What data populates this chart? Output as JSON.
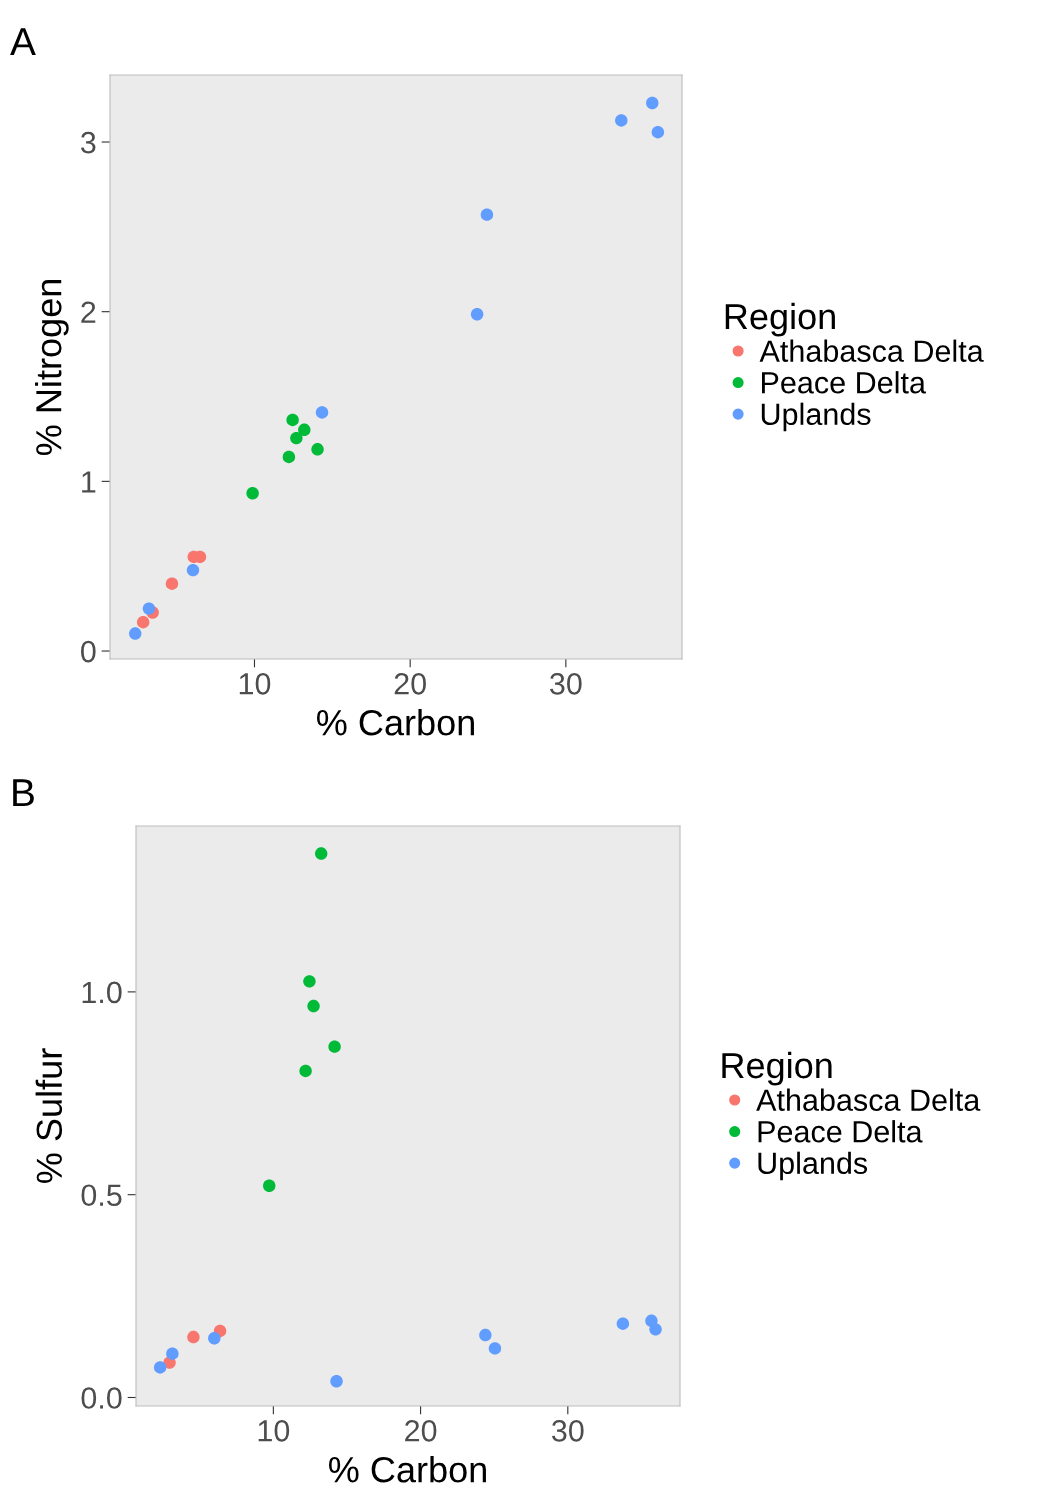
{
  "chart_data": [
    {
      "type": "scatter",
      "annotations": [
        "A"
      ],
      "xlabel": "% Carbon",
      "ylabel": "% Nitrogen",
      "legend_title": "Region",
      "legend": "right",
      "marker": "circle",
      "grid": false,
      "xlim": [
        0.72,
        37.46
      ],
      "xticks": [
        10,
        20,
        30
      ],
      "ylim": [
        -0.047,
        3.395
      ],
      "yticks": [
        0,
        1,
        2,
        3
      ],
      "series": [
        {
          "name": "Athabasca Delta",
          "color": "#f8766d",
          "x": [
            2.85,
            3.1,
            3.46,
            4.7,
            6.1,
            6.5
          ],
          "values": [
            0.17,
            null,
            0.227,
            0.397,
            0.555,
            0.555
          ]
        },
        {
          "name": "Peace Delta",
          "color": "#00ba38",
          "x": [
            9.88,
            12.21,
            12.45,
            12.69,
            13.2,
            14.05
          ],
          "values": [
            0.93,
            1.144,
            1.362,
            1.255,
            1.304,
            1.189
          ]
        },
        {
          "name": "Uplands",
          "color": "#619cff",
          "x": [
            2.34,
            3.22,
            6.05,
            14.34,
            24.3,
            24.93,
            33.56,
            35.55,
            35.91
          ],
          "values": [
            0.103,
            0.25,
            0.477,
            1.406,
            1.985,
            2.572,
            3.127,
            3.23,
            3.058
          ]
        }
      ]
    },
    {
      "type": "scatter",
      "annotations": [
        "B"
      ],
      "xlabel": "% Carbon",
      "ylabel": "% Sulfur",
      "legend_title": "Region",
      "legend": "right",
      "marker": "circle",
      "grid": false,
      "xlim": [
        0.67,
        37.62
      ],
      "xticks": [
        10,
        20,
        30
      ],
      "ylim": [
        -0.021,
        1.409
      ],
      "yticks": [
        {
          "value": 0,
          "label": "0.0"
        },
        {
          "value": 0.5,
          "label": "0.5"
        },
        {
          "value": 1,
          "label": "1.0"
        }
      ],
      "series": [
        {
          "name": "Athabasca Delta",
          "color": "#f8766d",
          "x": [
            2.95,
            3.0,
            3.4,
            4.57,
            6.38
          ],
          "values": [
            0.086,
            null,
            null,
            0.149,
            0.164
          ]
        },
        {
          "name": "Peace Delta",
          "color": "#00ba38",
          "x": [
            9.72,
            12.19,
            12.45,
            12.73,
            13.25,
            14.16
          ],
          "values": [
            0.522,
            0.805,
            1.026,
            0.965,
            1.341,
            0.865
          ]
        },
        {
          "name": "Uplands",
          "color": "#619cff",
          "x": [
            2.31,
            3.14,
            5.99,
            14.29,
            24.4,
            25.05,
            33.74,
            35.68,
            35.96
          ],
          "values": [
            0.074,
            0.108,
            0.146,
            0.04,
            0.154,
            0.121,
            0.182,
            0.189,
            0.168
          ]
        }
      ]
    }
  ]
}
